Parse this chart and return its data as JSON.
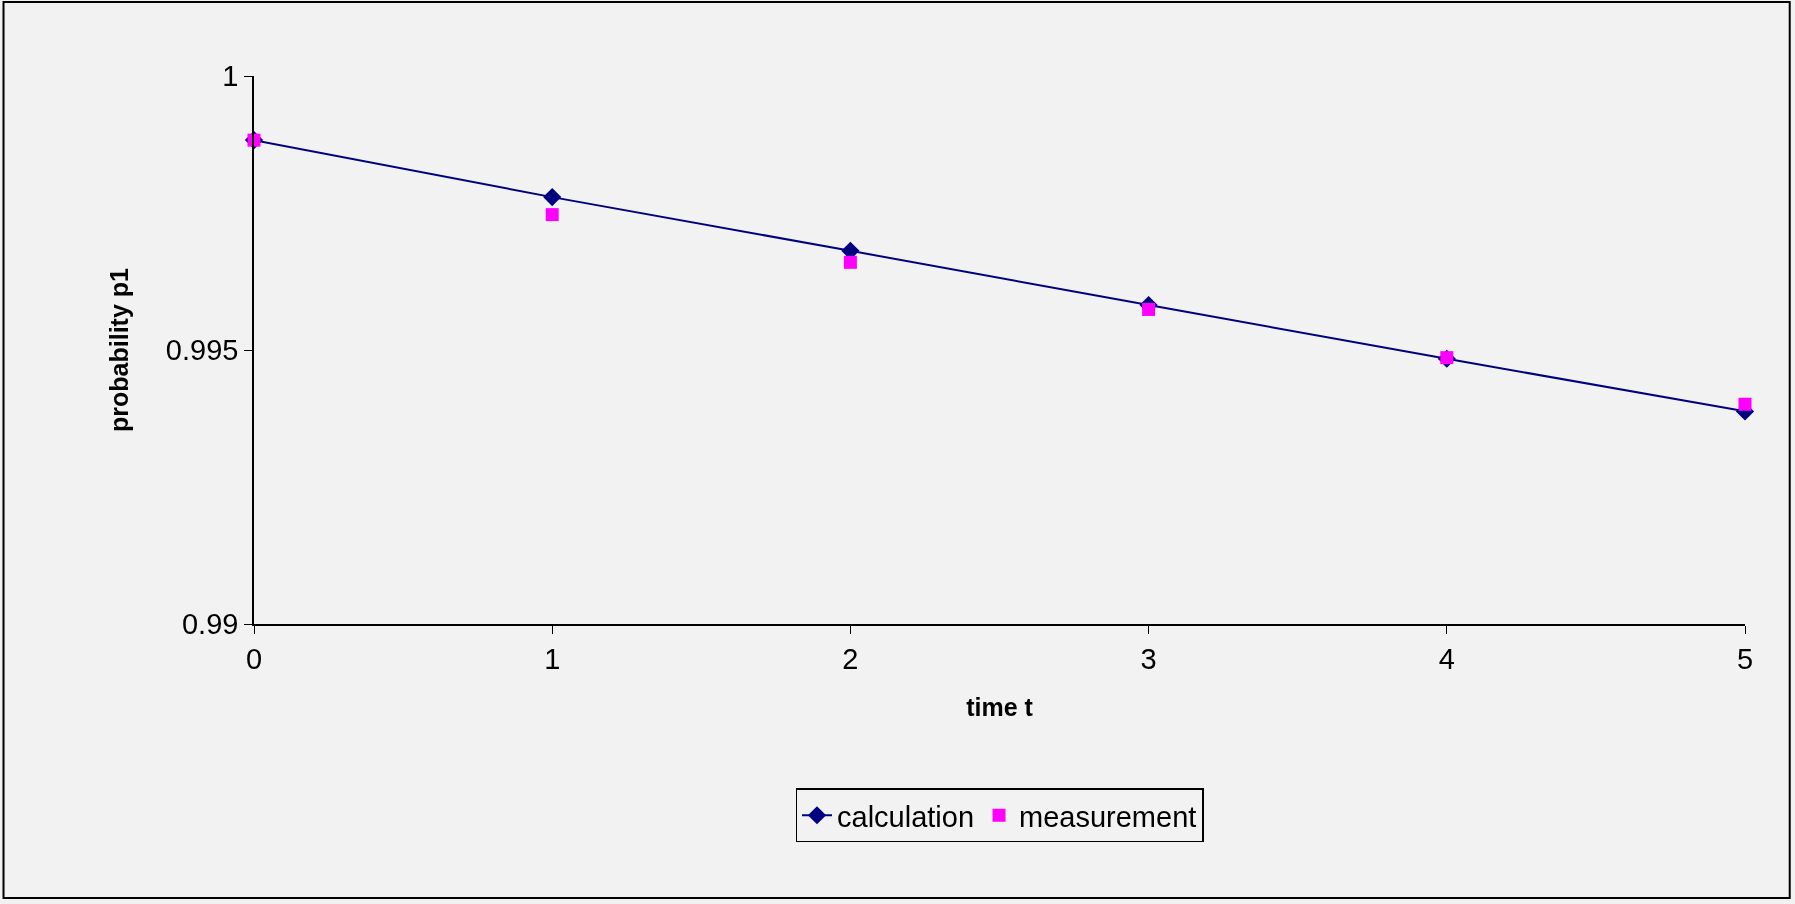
{
  "chart_data": {
    "type": "line",
    "xlabel": "time t",
    "ylabel": "probability p1",
    "x": [
      0,
      1,
      2,
      3,
      4,
      5
    ],
    "series": [
      {
        "name": "calculation",
        "color": "#000080",
        "marker": "diamond",
        "line_style": "solid",
        "values": [
          0.99883,
          0.99779,
          0.99681,
          0.99582,
          0.99484,
          0.99388
        ]
      },
      {
        "name": "measurement",
        "type": "scatter",
        "color": "#ff00ff",
        "marker": "square",
        "values": [
          0.99883,
          0.99747,
          0.9966,
          0.99574,
          0.99486,
          0.99401
        ]
      }
    ],
    "xlim": [
      0,
      5
    ],
    "xticks": [
      0,
      1,
      2,
      3,
      4,
      5
    ],
    "ylim": [
      0.99,
      1
    ],
    "yticks": [
      0.99,
      0.995,
      1
    ],
    "grid": false,
    "legend": "bottom"
  }
}
